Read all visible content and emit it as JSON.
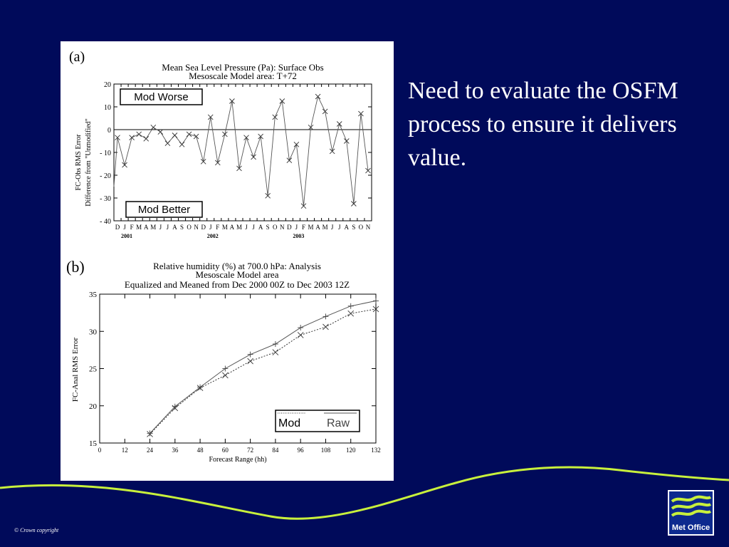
{
  "slide": {
    "bullet_text": "Need to evaluate the OSFM process to ensure it delivers value.",
    "copyright": "© Crown copyright",
    "logo_label": "Met Office",
    "colors": {
      "background": "#000a5a",
      "accent_swoosh": "#c8f03c",
      "text": "#ffffff"
    }
  },
  "chart_data": [
    {
      "panel_label": "(a)",
      "type": "line",
      "title": "Mean Sea Level Pressure (Pa):  Surface Obs",
      "subtitle": "Mesoscale Model area: T+72",
      "xlabel": "",
      "ylabel_line1": "FC-Obs RMS Error",
      "ylabel_line2": "Difference from \"Unmodified\"",
      "ylim": [
        -40,
        20
      ],
      "yticks": [
        20,
        10,
        0,
        -10,
        -20,
        -30,
        -40
      ],
      "month_ticks": [
        "D",
        "J",
        "F",
        "M",
        "A",
        "M",
        "J",
        "J",
        "A",
        "S",
        "O",
        "N",
        "D",
        "J",
        "F",
        "M",
        "A",
        "M",
        "J",
        "J",
        "A",
        "S",
        "O",
        "N",
        "D",
        "J",
        "F",
        "M",
        "A",
        "M",
        "J",
        "J",
        "A",
        "S",
        "O",
        "N"
      ],
      "year_labels": [
        {
          "label": "2001",
          "month_index": 1
        },
        {
          "label": "2002",
          "month_index": 13
        },
        {
          "label": "2003",
          "month_index": 25
        }
      ],
      "zero_line": true,
      "annotations": {
        "upper": "Mod Worse",
        "lower": "Mod Better"
      },
      "points_x": [
        0.5,
        1.5,
        2.5,
        3.5,
        4.5,
        5.5,
        6.5,
        7.5,
        8.5,
        9.5,
        10.5,
        11.5,
        12.5,
        13.5,
        14.5,
        15.5,
        16.5,
        17.5,
        18.5,
        19.5,
        20.5,
        21.5,
        22.5,
        23.5,
        24.5,
        25.5,
        26.5,
        27.5,
        28.5,
        29.5,
        30.5,
        31.5,
        32.5,
        33.5,
        34.5,
        35.5
      ],
      "values": [
        -3.5,
        -15.5,
        -3.5,
        -2,
        -4,
        1,
        -1,
        -6,
        -2.5,
        -6.5,
        -2,
        -3,
        -14,
        5.5,
        -14.5,
        -2,
        12.5,
        -17,
        -3.5,
        -12,
        -3,
        -29,
        5.5,
        12.5,
        -13.5,
        -6.5,
        -33.5,
        1,
        14.5,
        8,
        -9.5,
        2.5,
        -5,
        -32.5,
        7,
        -18
      ],
      "series_line_x": [
        -0.2,
        0.5,
        1.5,
        2.5,
        3.5,
        4.5,
        5.5,
        6.5,
        7.5,
        8.5,
        9.5,
        10.5,
        11.5,
        12.5,
        13.5,
        14.5,
        15.5,
        16.5,
        17.5,
        18.5,
        19.5,
        20.5,
        21.5,
        22.5,
        23.5,
        24.5,
        25.5,
        26.5,
        27.5,
        28.5,
        29.5,
        30.5,
        31.5,
        32.5,
        33.5,
        34.5,
        35.5
      ],
      "series_line_y": [
        -25,
        -3.5,
        -15.5,
        -3.5,
        -2,
        -4,
        1,
        -1,
        -6,
        -2.5,
        -6.5,
        -2,
        -3,
        -14,
        5.5,
        -14.5,
        -2,
        12.5,
        -17,
        -3.5,
        -12,
        -3,
        -29,
        5.5,
        12.5,
        -13.5,
        -6.5,
        -33.5,
        1,
        14.5,
        8,
        -9.5,
        2.5,
        -5,
        -32.5,
        7,
        -18
      ]
    },
    {
      "panel_label": "(b)",
      "type": "line",
      "title": "Relative humidity (%) at 700.0 hPa:  Analysis",
      "subtitle": "Mesoscale Model area",
      "subtitle2": "Equalized and Meaned from Dec 2000 00Z to Dec 2003 12Z",
      "xlabel": "Forecast Range (hh)",
      "ylabel": "FC-Anal RMS Error",
      "xlim": [
        0,
        132
      ],
      "ylim": [
        15,
        35
      ],
      "xticks": [
        0,
        12,
        24,
        36,
        48,
        60,
        72,
        84,
        96,
        108,
        120,
        132
      ],
      "yticks": [
        15,
        20,
        25,
        30,
        35
      ],
      "legend_position": "bottom-right",
      "series": [
        {
          "name": "Mod",
          "line_style": "dotted",
          "marker": "x",
          "x": [
            24,
            36,
            48,
            60,
            72,
            84,
            96,
            108,
            120,
            132
          ],
          "values": [
            16.2,
            19.7,
            22.4,
            24.1,
            26.0,
            27.2,
            29.5,
            30.6,
            32.4,
            33.0
          ]
        },
        {
          "name": "Raw",
          "line_style": "solid",
          "marker": "+",
          "x": [
            24,
            36,
            48,
            60,
            72,
            84,
            96,
            108,
            120,
            132
          ],
          "values": [
            16.3,
            19.9,
            22.5,
            25.0,
            26.9,
            28.3,
            30.5,
            32.0,
            33.4,
            34.1
          ]
        }
      ]
    }
  ]
}
